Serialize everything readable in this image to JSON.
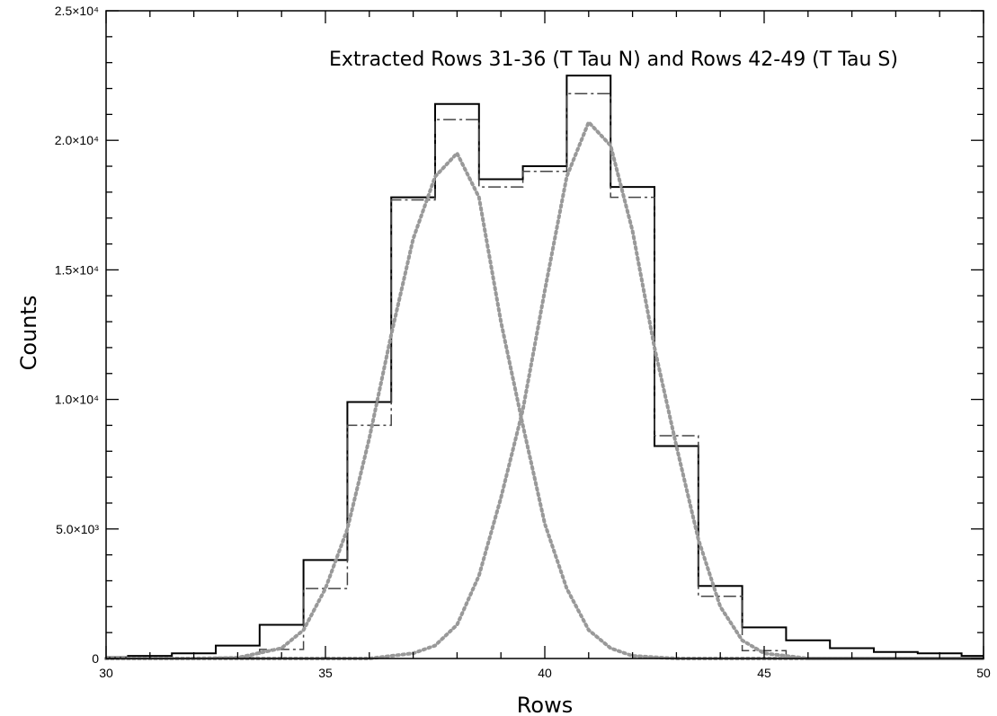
{
  "chart_data": {
    "type": "line",
    "title": "",
    "xlabel": "Rows",
    "ylabel": "Counts",
    "xlim": [
      30,
      50
    ],
    "ylim": [
      0,
      25000
    ],
    "annotation": "Extracted Rows 31-36 (T Tau N) and Rows 42-49 (T Tau S)",
    "x_ticks": [
      {
        "value": 30,
        "label": "30"
      },
      {
        "value": 35,
        "label": "35"
      },
      {
        "value": 40,
        "label": "40"
      },
      {
        "value": 45,
        "label": "45"
      },
      {
        "value": 50,
        "label": "50"
      }
    ],
    "y_ticks": [
      {
        "value": 0,
        "label": "0"
      },
      {
        "value": 5000,
        "label": "5.0×10³"
      },
      {
        "value": 10000,
        "label": "1.0×10⁴"
      },
      {
        "value": 15000,
        "label": "1.5×10⁴"
      },
      {
        "value": 20000,
        "label": "2.0×10⁴"
      },
      {
        "value": 25000,
        "label": "2.5×10⁴"
      }
    ],
    "series": [
      {
        "style": "step-solid",
        "color": "#000000",
        "x": [
          30,
          31,
          32,
          33,
          34,
          35,
          36,
          37,
          38,
          39,
          40,
          41,
          42,
          43,
          44,
          45,
          46,
          47,
          48,
          49,
          50
        ],
        "y": [
          50,
          100,
          200,
          500,
          1300,
          3800,
          9900,
          17800,
          21400,
          18500,
          19000,
          22500,
          18200,
          8200,
          2800,
          1200,
          700,
          400,
          250,
          200,
          100
        ]
      },
      {
        "style": "step-dashdot",
        "color": "#444444",
        "x": [
          30,
          31,
          32,
          33,
          34,
          35,
          36,
          37,
          38,
          39,
          40,
          41,
          42,
          43,
          44,
          45,
          46,
          47,
          48,
          49,
          50
        ],
        "y": [
          0,
          0,
          0,
          50,
          350,
          2700,
          9000,
          17700,
          20800,
          18200,
          18800,
          21800,
          17800,
          8600,
          2400,
          300,
          0,
          0,
          0,
          0,
          0
        ]
      },
      {
        "style": "dotted-gaussian",
        "color": "#999999",
        "x": [
          30,
          32,
          33,
          34,
          34.5,
          35,
          35.5,
          36,
          36.5,
          37,
          37.5,
          38,
          38.5,
          39,
          39.5,
          40,
          40.5,
          41,
          41.5,
          42,
          43,
          44,
          46,
          50
        ],
        "y": [
          0,
          0,
          30,
          400,
          1100,
          2700,
          5000,
          8500,
          12500,
          16200,
          18600,
          19500,
          17800,
          13000,
          9000,
          5200,
          2700,
          1100,
          400,
          100,
          0,
          0,
          0,
          0
        ]
      },
      {
        "style": "dotted-gaussian",
        "color": "#999999",
        "x": [
          30,
          36,
          37,
          37.5,
          38,
          38.5,
          39,
          39.5,
          40,
          40.5,
          41,
          41.5,
          42,
          42.5,
          43,
          43.5,
          44,
          44.5,
          45,
          46,
          50
        ],
        "y": [
          0,
          0,
          200,
          500,
          1300,
          3200,
          6200,
          9600,
          14200,
          18600,
          20700,
          19800,
          16500,
          12000,
          8200,
          4600,
          2000,
          700,
          200,
          0,
          0
        ]
      }
    ]
  }
}
